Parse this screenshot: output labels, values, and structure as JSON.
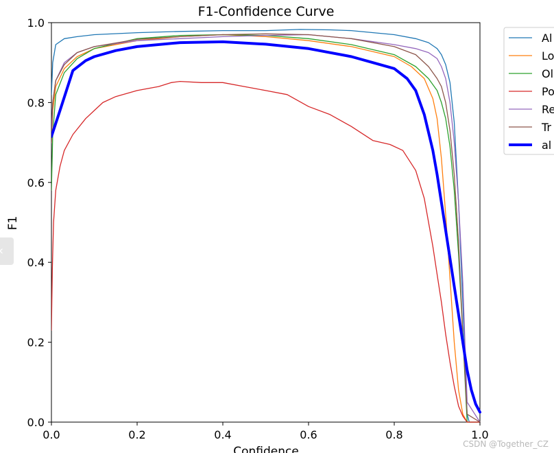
{
  "chart_data": {
    "type": "line",
    "title": "F1-Confidence Curve",
    "xlabel": "Confidence",
    "ylabel": "F1",
    "xlim": [
      0.0,
      1.0
    ],
    "ylim": [
      0.0,
      1.0
    ],
    "xticks": [
      "0.0",
      "0.2",
      "0.4",
      "0.6",
      "0.8",
      "1.0"
    ],
    "yticks": [
      "0.0",
      "0.2",
      "0.4",
      "0.6",
      "0.8",
      "1.0"
    ],
    "grid": false,
    "legend_position": "outside-top-right",
    "series": [
      {
        "name": "Al",
        "color": "#1f77b4",
        "width": 1.3,
        "x": [
          0.0,
          0.003,
          0.01,
          0.03,
          0.06,
          0.1,
          0.2,
          0.3,
          0.4,
          0.5,
          0.58,
          0.65,
          0.7,
          0.8,
          0.85,
          0.88,
          0.9,
          0.91,
          0.92,
          0.93,
          0.94,
          0.95,
          0.96,
          0.965,
          0.97,
          0.975,
          1.0
        ],
        "y": [
          0.82,
          0.9,
          0.945,
          0.96,
          0.965,
          0.97,
          0.975,
          0.978,
          0.98,
          0.98,
          0.983,
          0.982,
          0.98,
          0.97,
          0.96,
          0.95,
          0.935,
          0.92,
          0.895,
          0.85,
          0.75,
          0.55,
          0.3,
          0.15,
          0.02,
          0.0,
          0.0
        ]
      },
      {
        "name": "Lo",
        "color": "#ff7f0e",
        "width": 1.3,
        "x": [
          0.0,
          0.003,
          0.01,
          0.03,
          0.06,
          0.1,
          0.2,
          0.3,
          0.4,
          0.5,
          0.6,
          0.7,
          0.8,
          0.84,
          0.87,
          0.89,
          0.9,
          0.91,
          0.92,
          0.93,
          0.94,
          0.95,
          0.96,
          0.97,
          1.0
        ],
        "y": [
          0.7,
          0.78,
          0.84,
          0.885,
          0.915,
          0.935,
          0.955,
          0.965,
          0.97,
          0.965,
          0.955,
          0.94,
          0.915,
          0.89,
          0.86,
          0.81,
          0.76,
          0.66,
          0.52,
          0.36,
          0.2,
          0.08,
          0.02,
          0.0,
          0.0
        ]
      },
      {
        "name": "Ol",
        "color": "#2ca02c",
        "width": 1.3,
        "x": [
          0.0,
          0.003,
          0.01,
          0.03,
          0.06,
          0.1,
          0.2,
          0.3,
          0.4,
          0.5,
          0.6,
          0.7,
          0.8,
          0.85,
          0.88,
          0.9,
          0.91,
          0.92,
          0.93,
          0.94,
          0.95,
          0.96,
          0.97,
          1.0
        ],
        "y": [
          0.58,
          0.72,
          0.82,
          0.875,
          0.91,
          0.935,
          0.96,
          0.968,
          0.97,
          0.968,
          0.96,
          0.945,
          0.92,
          0.89,
          0.86,
          0.83,
          0.8,
          0.76,
          0.69,
          0.58,
          0.42,
          0.22,
          0.0,
          0.0
        ]
      },
      {
        "name": "Po",
        "color": "#d62728",
        "width": 1.3,
        "x": [
          0.0,
          0.002,
          0.005,
          0.01,
          0.02,
          0.03,
          0.05,
          0.08,
          0.1,
          0.12,
          0.15,
          0.2,
          0.25,
          0.28,
          0.3,
          0.35,
          0.4,
          0.45,
          0.5,
          0.55,
          0.6,
          0.65,
          0.7,
          0.75,
          0.79,
          0.82,
          0.85,
          0.87,
          0.89,
          0.9,
          0.91,
          0.92,
          0.93,
          0.94,
          0.95,
          0.96,
          0.97,
          1.0
        ],
        "y": [
          0.23,
          0.38,
          0.5,
          0.58,
          0.64,
          0.68,
          0.72,
          0.76,
          0.78,
          0.8,
          0.815,
          0.83,
          0.84,
          0.85,
          0.853,
          0.85,
          0.85,
          0.84,
          0.83,
          0.82,
          0.79,
          0.77,
          0.74,
          0.705,
          0.695,
          0.68,
          0.63,
          0.56,
          0.44,
          0.37,
          0.3,
          0.22,
          0.15,
          0.09,
          0.04,
          0.015,
          0.0,
          0.0
        ]
      },
      {
        "name": "Re",
        "color": "#9467bd",
        "width": 1.3,
        "x": [
          0.0,
          0.003,
          0.01,
          0.03,
          0.06,
          0.1,
          0.2,
          0.3,
          0.4,
          0.5,
          0.6,
          0.7,
          0.8,
          0.85,
          0.88,
          0.9,
          0.91,
          0.92,
          0.93,
          0.94,
          0.95,
          0.96,
          0.965,
          0.97,
          1.0
        ],
        "y": [
          0.73,
          0.8,
          0.855,
          0.9,
          0.925,
          0.94,
          0.955,
          0.96,
          0.965,
          0.968,
          0.97,
          0.96,
          0.945,
          0.935,
          0.925,
          0.91,
          0.89,
          0.86,
          0.8,
          0.7,
          0.55,
          0.35,
          0.2,
          0.05,
          0.0
        ]
      },
      {
        "name": "Tr",
        "color": "#8c564b",
        "width": 1.3,
        "x": [
          0.0,
          0.003,
          0.01,
          0.03,
          0.06,
          0.1,
          0.2,
          0.3,
          0.4,
          0.5,
          0.6,
          0.7,
          0.8,
          0.85,
          0.88,
          0.9,
          0.91,
          0.92,
          0.93,
          0.94,
          0.95,
          0.96,
          0.97,
          1.0
        ],
        "y": [
          0.7,
          0.8,
          0.855,
          0.895,
          0.925,
          0.94,
          0.958,
          0.965,
          0.97,
          0.972,
          0.97,
          0.96,
          0.94,
          0.92,
          0.89,
          0.86,
          0.84,
          0.8,
          0.73,
          0.62,
          0.45,
          0.22,
          0.02,
          0.0
        ]
      },
      {
        "name": "al",
        "color": "#0000ff",
        "width": 4,
        "x": [
          0.0,
          0.02,
          0.05,
          0.08,
          0.1,
          0.15,
          0.2,
          0.3,
          0.4,
          0.5,
          0.6,
          0.7,
          0.75,
          0.8,
          0.83,
          0.85,
          0.87,
          0.89,
          0.9,
          0.91,
          0.92,
          0.93,
          0.94,
          0.95,
          0.96,
          0.97,
          0.98,
          0.99,
          1.0
        ],
        "y": [
          0.715,
          0.78,
          0.88,
          0.905,
          0.915,
          0.93,
          0.94,
          0.95,
          0.952,
          0.946,
          0.935,
          0.915,
          0.9,
          0.885,
          0.86,
          0.83,
          0.77,
          0.68,
          0.62,
          0.55,
          0.48,
          0.41,
          0.34,
          0.27,
          0.2,
          0.13,
          0.08,
          0.045,
          0.025
        ]
      }
    ]
  },
  "watermark": "CSDN @Together_CZ",
  "side_tab_icon": "‹"
}
